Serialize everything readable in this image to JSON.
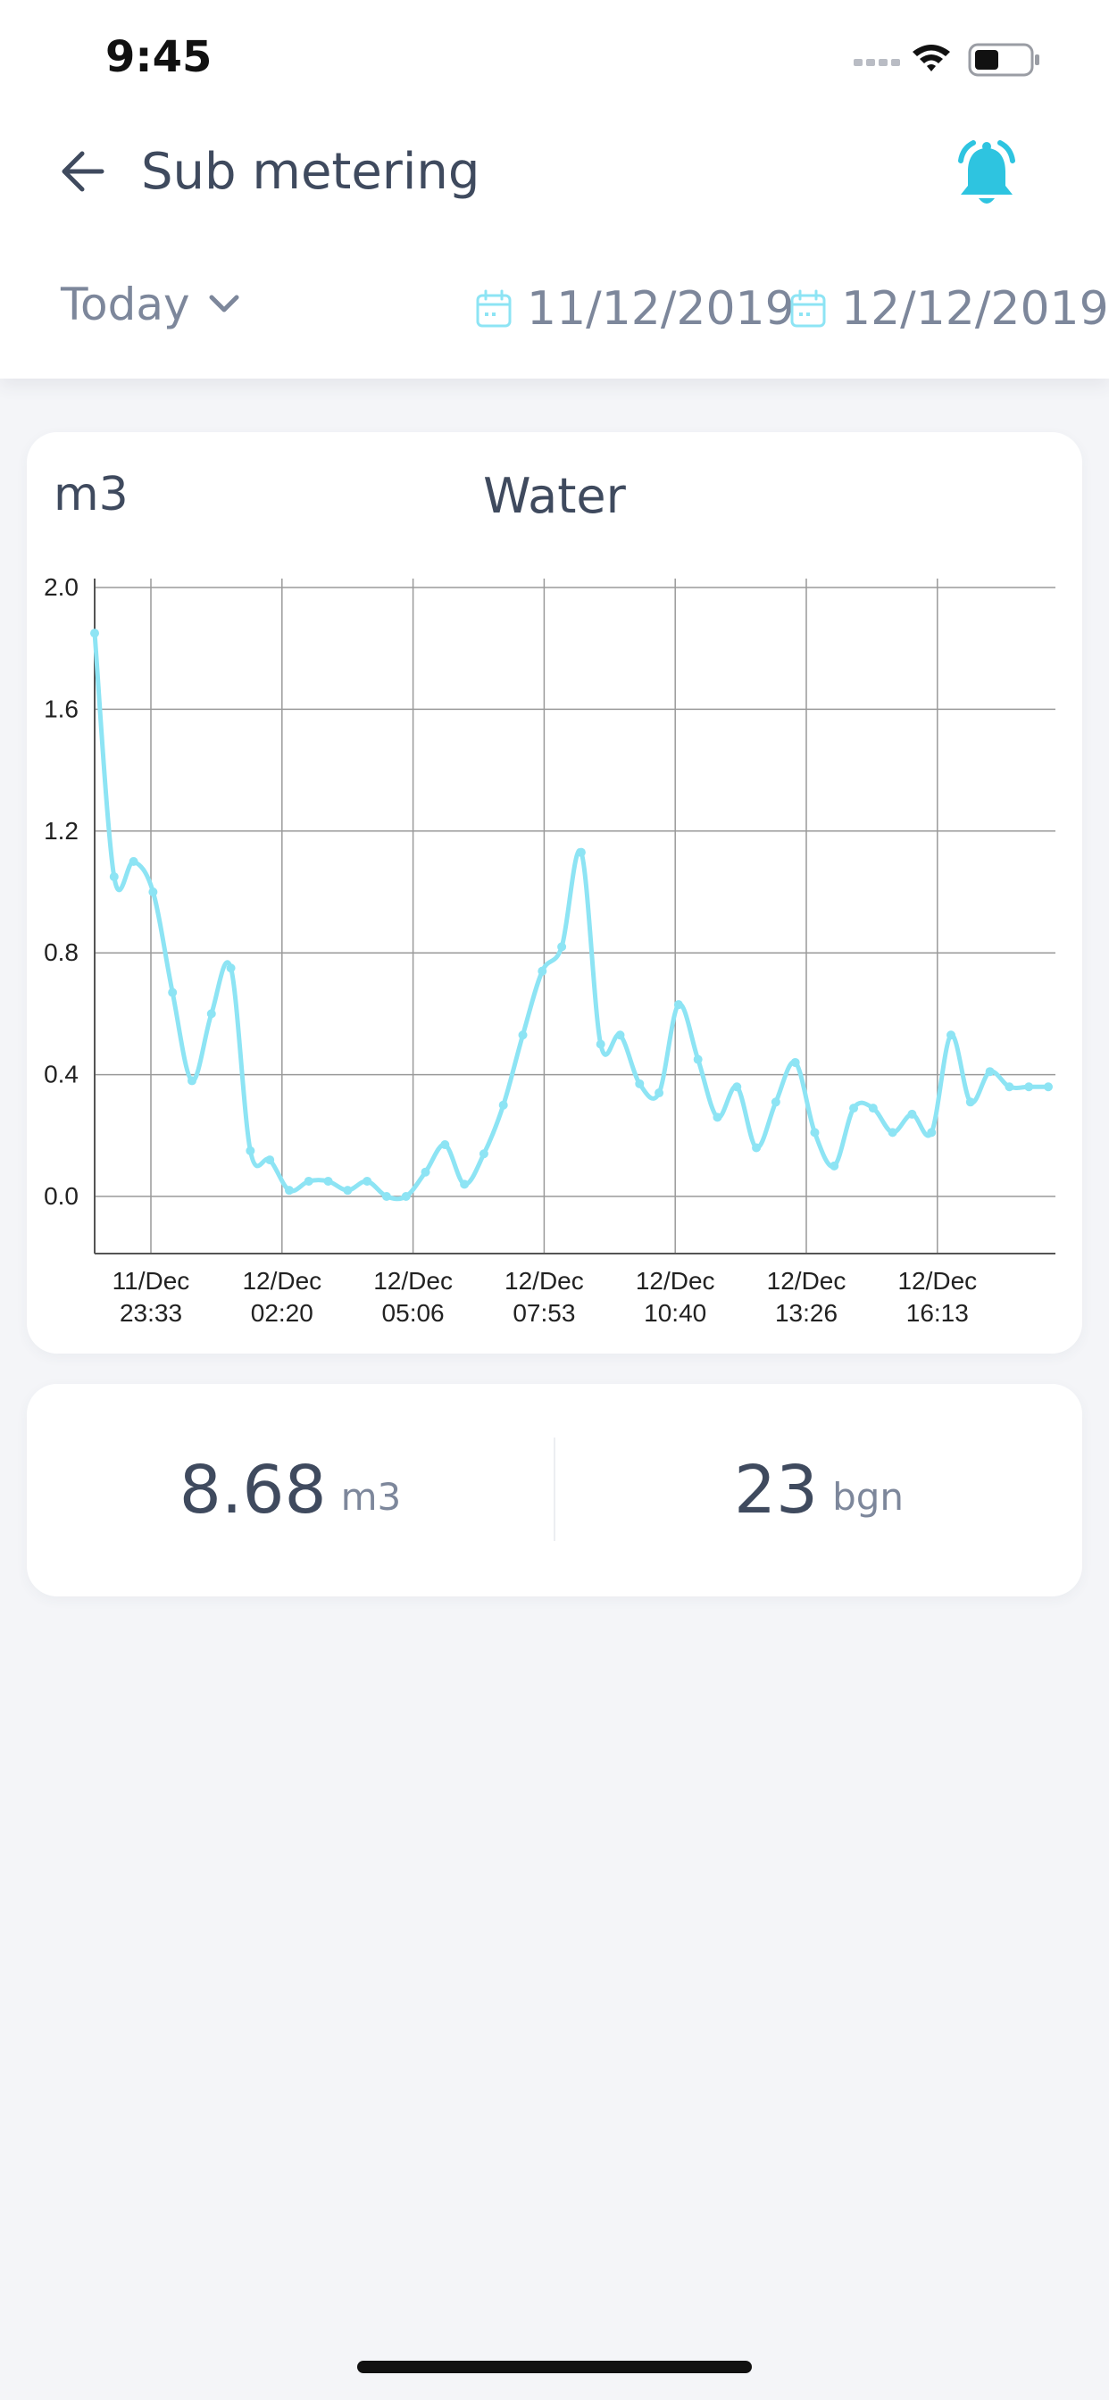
{
  "status_bar": {
    "time": "9:45"
  },
  "nav": {
    "title": "Sub metering"
  },
  "filters": {
    "period": "Today",
    "date_from": "11/12/2019",
    "date_to": "12/12/2019"
  },
  "icons": {
    "back": "arrow-left-icon",
    "alarm": "alarm-bell-icon",
    "period_toggle": "chevron-down-icon",
    "date": "calendar-icon"
  },
  "colors": {
    "accent": "#2ec4e0",
    "line": "#8de4f4",
    "text": "#3f4a5e",
    "muted": "#7d879b"
  },
  "chart_data": {
    "type": "line",
    "title": "Water",
    "ylabel": "m3",
    "ylim": [
      0.0,
      2.0
    ],
    "y_ticks": [
      "2.0",
      "1.6",
      "1.2",
      "0.8",
      "0.4",
      "0.0"
    ],
    "x_ticks": [
      {
        "date": "11/Dec",
        "time": "23:33"
      },
      {
        "date": "12/Dec",
        "time": "02:20"
      },
      {
        "date": "12/Dec",
        "time": "05:06"
      },
      {
        "date": "12/Dec",
        "time": "07:53"
      },
      {
        "date": "12/Dec",
        "time": "10:40"
      },
      {
        "date": "12/Dec",
        "time": "13:26"
      },
      {
        "date": "12/Dec",
        "time": "16:13"
      }
    ],
    "grid": true,
    "series": [
      {
        "values": [
          1.85,
          1.05,
          1.1,
          1.0,
          0.67,
          0.38,
          0.6,
          0.75,
          0.15,
          0.12,
          0.02,
          0.05,
          0.05,
          0.02,
          0.05,
          0.0,
          0.0,
          0.08,
          0.17,
          0.04,
          0.14,
          0.3,
          0.53,
          0.74,
          0.82,
          1.13,
          0.5,
          0.53,
          0.37,
          0.34,
          0.63,
          0.45,
          0.26,
          0.36,
          0.16,
          0.31,
          0.44,
          0.21,
          0.1,
          0.29,
          0.29,
          0.21,
          0.27,
          0.21,
          0.53,
          0.31,
          0.41,
          0.36,
          0.36,
          0.36
        ]
      }
    ]
  },
  "stats": {
    "volume": {
      "value": "8.68",
      "unit": "m3"
    },
    "cost": {
      "value": "23",
      "unit": "bgn"
    }
  }
}
